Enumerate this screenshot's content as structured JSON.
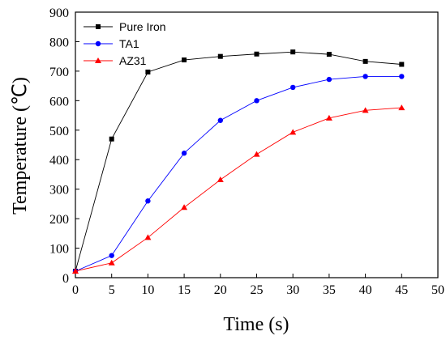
{
  "chart_data": {
    "type": "line",
    "title": "",
    "xlabel": "Time (s)",
    "ylabel": "Temperature (℃)",
    "xlim": [
      0,
      50
    ],
    "ylim": [
      0,
      900
    ],
    "xticks": [
      0,
      5,
      10,
      15,
      20,
      25,
      30,
      35,
      40,
      45,
      50
    ],
    "yticks": [
      0,
      100,
      200,
      300,
      400,
      500,
      600,
      700,
      800,
      900
    ],
    "grid": false,
    "legend_position": "top-left",
    "x": [
      0,
      5,
      10,
      15,
      20,
      25,
      30,
      35,
      40,
      45
    ],
    "series": [
      {
        "name": "Pure Iron",
        "color": "#000000",
        "marker": "square",
        "values": [
          22,
          470,
          697,
          738,
          750,
          758,
          765,
          757,
          733,
          723
        ]
      },
      {
        "name": "TA1",
        "color": "#0000ff",
        "marker": "circle",
        "values": [
          22,
          75,
          260,
          422,
          533,
          600,
          645,
          672,
          682,
          682
        ]
      },
      {
        "name": "AZ31",
        "color": "#ff0000",
        "marker": "triangle",
        "values": [
          22,
          50,
          136,
          238,
          332,
          418,
          493,
          541,
          567,
          576
        ]
      }
    ]
  }
}
